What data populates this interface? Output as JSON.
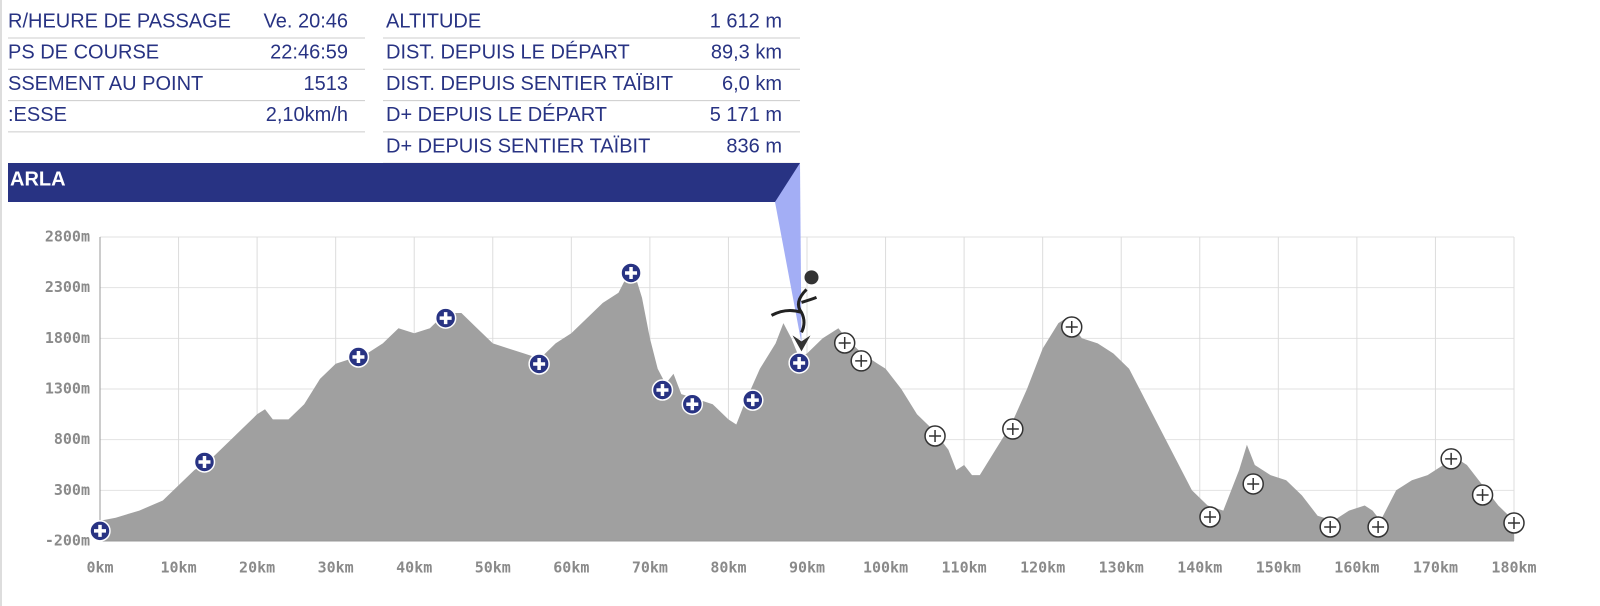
{
  "info_left": {
    "rows": [
      [
        "R/HEURE DE PASSAGE",
        "Ve. 20:46"
      ],
      [
        "PS DE COURSE",
        "22:46:59"
      ],
      [
        "SSEMENT AU POINT",
        "1513"
      ],
      [
        ":ESSE",
        "2,10km/h"
      ]
    ]
  },
  "info_right": {
    "rows": [
      [
        "ALTITUDE",
        "1 612 m"
      ],
      [
        "DIST. DEPUIS LE DÉPART",
        "89,3 km"
      ],
      [
        "DIST. DEPUIS SENTIER TAÏBIT",
        "6,0 km"
      ],
      [
        "D+ DEPUIS LE DÉPART",
        "5 171 m"
      ],
      [
        "D+ DEPUIS SENTIER TAÏBIT",
        "836 m"
      ]
    ]
  },
  "banner": {
    "title": "ARLA"
  },
  "chart_data": {
    "type": "area",
    "x": [
      0,
      2,
      5,
      8,
      10,
      12,
      14,
      16,
      18,
      20,
      21,
      22,
      24,
      26,
      28,
      30,
      32,
      34,
      36,
      38,
      40,
      42,
      44,
      46,
      48,
      50,
      52,
      54,
      56,
      58,
      60,
      62,
      64,
      66,
      67,
      68,
      69,
      70,
      71,
      72,
      73,
      74,
      76,
      78,
      80,
      81,
      82,
      84,
      86,
      87,
      88,
      89,
      90,
      92,
      93,
      94,
      95,
      97,
      99,
      100,
      102,
      104,
      106,
      108,
      109,
      110,
      111,
      112,
      114,
      116,
      118,
      120,
      122,
      123,
      125,
      127,
      129,
      131,
      133,
      135,
      137,
      139,
      141,
      143,
      145,
      146,
      147,
      149,
      151,
      153,
      155,
      157,
      159,
      161,
      162,
      163,
      165,
      167,
      169,
      171,
      172,
      174,
      176,
      178,
      180
    ],
    "values": [
      0,
      30,
      100,
      200,
      350,
      500,
      600,
      750,
      900,
      1050,
      1100,
      1000,
      1000,
      1150,
      1400,
      1550,
      1600,
      1650,
      1750,
      1900,
      1850,
      1900,
      2050,
      2050,
      1900,
      1750,
      1700,
      1650,
      1600,
      1750,
      1850,
      2000,
      2150,
      2250,
      2400,
      2450,
      2200,
      1800,
      1500,
      1350,
      1450,
      1250,
      1200,
      1150,
      1000,
      950,
      1150,
      1500,
      1750,
      1950,
      1800,
      1612,
      1650,
      1800,
      1850,
      1900,
      1800,
      1650,
      1550,
      1500,
      1300,
      1050,
      900,
      700,
      500,
      550,
      450,
      450,
      700,
      950,
      1300,
      1700,
      1950,
      2000,
      1800,
      1750,
      1650,
      1500,
      1200,
      900,
      600,
      300,
      150,
      100,
      500,
      750,
      550,
      450,
      400,
      250,
      50,
      0,
      100,
      150,
      100,
      0,
      300,
      400,
      450,
      550,
      650,
      550,
      350,
      150,
      0
    ],
    "color": "#a0a0a0",
    "waypoints": [
      {
        "color": "#283383",
        "x": [
          0,
          13.3,
          32.9,
          44,
          55.9,
          67.6,
          71.6,
          75.4,
          83.1,
          89
        ],
        "values": [
          -100,
          580,
          1616,
          2000,
          1547,
          2445,
          1290,
          1150,
          1190,
          1557
        ]
      },
      {
        "color": "#ffffff",
        "x": [
          94.8,
          96.9,
          106.3,
          116.2,
          123.7,
          141.3,
          146.8,
          156.6,
          162.7,
          172,
          176,
          180
        ],
        "values": [
          1754,
          1577,
          836,
          905,
          1912,
          37,
          363,
          -62,
          -62,
          610,
          254,
          -22
        ]
      }
    ],
    "runner": {
      "x": 89.3,
      "value": 1612
    },
    "xlim": [
      0,
      180
    ],
    "xticks": [
      {
        "value": 0,
        "label": "0km"
      },
      {
        "value": 10,
        "label": "10km"
      },
      {
        "value": 20,
        "label": "20km"
      },
      {
        "value": 30,
        "label": "30km"
      },
      {
        "value": 40,
        "label": "40km"
      },
      {
        "value": 50,
        "label": "50km"
      },
      {
        "value": 60,
        "label": "60km"
      },
      {
        "value": 70,
        "label": "70km"
      },
      {
        "value": 80,
        "label": "80km"
      },
      {
        "value": 90,
        "label": "90km"
      },
      {
        "value": 100,
        "label": "100km"
      },
      {
        "value": 110,
        "label": "110km"
      },
      {
        "value": 120,
        "label": "120km"
      },
      {
        "value": 130,
        "label": "130km"
      },
      {
        "value": 140,
        "label": "140km"
      },
      {
        "value": 150,
        "label": "150km"
      },
      {
        "value": 160,
        "label": "160km"
      },
      {
        "value": 170,
        "label": "170km"
      },
      {
        "value": 180,
        "label": "180km"
      }
    ],
    "ylim": [
      -200,
      2800
    ],
    "yticks": [
      {
        "value": -200,
        "label": "-200m"
      },
      {
        "value": 300,
        "label": "300m"
      },
      {
        "value": 800,
        "label": "800m"
      },
      {
        "value": 1300,
        "label": "1300m"
      },
      {
        "value": 1800,
        "label": "1800m"
      },
      {
        "value": 2300,
        "label": "2300m"
      },
      {
        "value": 2800,
        "label": "2800m"
      }
    ],
    "grid": true
  }
}
